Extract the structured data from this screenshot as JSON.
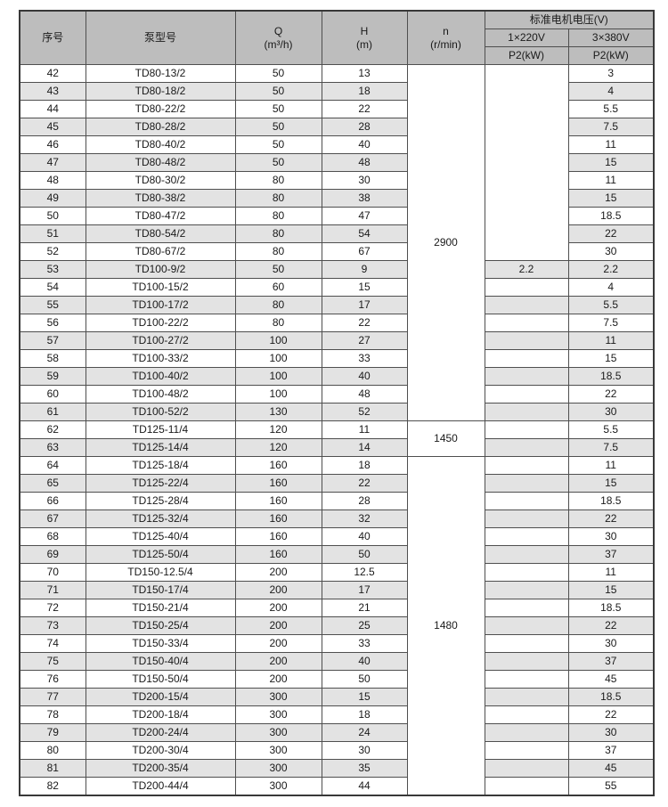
{
  "page": {
    "background": "#ffffff"
  },
  "colors": {
    "header_bg": "#bdbdbd",
    "stripe_bg": "#e3e3e3",
    "row_bg": "#ffffff",
    "border_inner": "#4f4f4f",
    "border_outer": "#383838",
    "text": "#1a1a1a"
  },
  "table": {
    "headers": {
      "no": "序号",
      "model": "泵型号",
      "q_line1": "Q",
      "q_line2": "(m³/h)",
      "h_line1": "H",
      "h_line2": "(m)",
      "n_line1": "n",
      "n_line2": "(r/min)",
      "voltage_group": "标准电机电压(V)",
      "v220": "1×220V",
      "v380": "3×380V",
      "p2_220": "P2(kW)",
      "p2_380": "P2(kW)"
    },
    "n_groups": [
      {
        "value": "2900",
        "start": 0,
        "span": 20
      },
      {
        "value": "1450",
        "start": 20,
        "span": 2
      },
      {
        "value": "1480",
        "start": 22,
        "span": 19
      }
    ],
    "p220_merge": {
      "start": 0,
      "span": 11
    },
    "rows": [
      {
        "no": "42",
        "model": "TD80-13/2",
        "q": "50",
        "h": "13",
        "p220": "",
        "p380": "3"
      },
      {
        "no": "43",
        "model": "TD80-18/2",
        "q": "50",
        "h": "18",
        "p220": "",
        "p380": "4"
      },
      {
        "no": "44",
        "model": "TD80-22/2",
        "q": "50",
        "h": "22",
        "p220": "",
        "p380": "5.5"
      },
      {
        "no": "45",
        "model": "TD80-28/2",
        "q": "50",
        "h": "28",
        "p220": "",
        "p380": "7.5"
      },
      {
        "no": "46",
        "model": "TD80-40/2",
        "q": "50",
        "h": "40",
        "p220": "",
        "p380": "11"
      },
      {
        "no": "47",
        "model": "TD80-48/2",
        "q": "50",
        "h": "48",
        "p220": "",
        "p380": "15"
      },
      {
        "no": "48",
        "model": "TD80-30/2",
        "q": "80",
        "h": "30",
        "p220": "",
        "p380": "11"
      },
      {
        "no": "49",
        "model": "TD80-38/2",
        "q": "80",
        "h": "38",
        "p220": "",
        "p380": "15"
      },
      {
        "no": "50",
        "model": "TD80-47/2",
        "q": "80",
        "h": "47",
        "p220": "",
        "p380": "18.5"
      },
      {
        "no": "51",
        "model": "TD80-54/2",
        "q": "80",
        "h": "54",
        "p220": "",
        "p380": "22"
      },
      {
        "no": "52",
        "model": "TD80-67/2",
        "q": "80",
        "h": "67",
        "p220": "",
        "p380": "30"
      },
      {
        "no": "53",
        "model": "TD100-9/2",
        "q": "50",
        "h": "9",
        "p220": "2.2",
        "p380": "2.2"
      },
      {
        "no": "54",
        "model": "TD100-15/2",
        "q": "60",
        "h": "15",
        "p220": "",
        "p380": "4"
      },
      {
        "no": "55",
        "model": "TD100-17/2",
        "q": "80",
        "h": "17",
        "p220": "",
        "p380": "5.5"
      },
      {
        "no": "56",
        "model": "TD100-22/2",
        "q": "80",
        "h": "22",
        "p220": "",
        "p380": "7.5"
      },
      {
        "no": "57",
        "model": "TD100-27/2",
        "q": "100",
        "h": "27",
        "p220": "",
        "p380": "11"
      },
      {
        "no": "58",
        "model": "TD100-33/2",
        "q": "100",
        "h": "33",
        "p220": "",
        "p380": "15"
      },
      {
        "no": "59",
        "model": "TD100-40/2",
        "q": "100",
        "h": "40",
        "p220": "",
        "p380": "18.5"
      },
      {
        "no": "60",
        "model": "TD100-48/2",
        "q": "100",
        "h": "48",
        "p220": "",
        "p380": "22"
      },
      {
        "no": "61",
        "model": "TD100-52/2",
        "q": "130",
        "h": "52",
        "p220": "",
        "p380": "30"
      },
      {
        "no": "62",
        "model": "TD125-11/4",
        "q": "120",
        "h": "11",
        "p220": "",
        "p380": "5.5"
      },
      {
        "no": "63",
        "model": "TD125-14/4",
        "q": "120",
        "h": "14",
        "p220": "",
        "p380": "7.5"
      },
      {
        "no": "64",
        "model": "TD125-18/4",
        "q": "160",
        "h": "18",
        "p220": "",
        "p380": "11"
      },
      {
        "no": "65",
        "model": "TD125-22/4",
        "q": "160",
        "h": "22",
        "p220": "",
        "p380": "15"
      },
      {
        "no": "66",
        "model": "TD125-28/4",
        "q": "160",
        "h": "28",
        "p220": "",
        "p380": "18.5"
      },
      {
        "no": "67",
        "model": "TD125-32/4",
        "q": "160",
        "h": "32",
        "p220": "",
        "p380": "22"
      },
      {
        "no": "68",
        "model": "TD125-40/4",
        "q": "160",
        "h": "40",
        "p220": "",
        "p380": "30"
      },
      {
        "no": "69",
        "model": "TD125-50/4",
        "q": "160",
        "h": "50",
        "p220": "",
        "p380": "37"
      },
      {
        "no": "70",
        "model": "TD150-12.5/4",
        "q": "200",
        "h": "12.5",
        "p220": "",
        "p380": "11"
      },
      {
        "no": "71",
        "model": "TD150-17/4",
        "q": "200",
        "h": "17",
        "p220": "",
        "p380": "15"
      },
      {
        "no": "72",
        "model": "TD150-21/4",
        "q": "200",
        "h": "21",
        "p220": "",
        "p380": "18.5"
      },
      {
        "no": "73",
        "model": "TD150-25/4",
        "q": "200",
        "h": "25",
        "p220": "",
        "p380": "22"
      },
      {
        "no": "74",
        "model": "TD150-33/4",
        "q": "200",
        "h": "33",
        "p220": "",
        "p380": "30"
      },
      {
        "no": "75",
        "model": "TD150-40/4",
        "q": "200",
        "h": "40",
        "p220": "",
        "p380": "37"
      },
      {
        "no": "76",
        "model": "TD150-50/4",
        "q": "200",
        "h": "50",
        "p220": "",
        "p380": "45"
      },
      {
        "no": "77",
        "model": "TD200-15/4",
        "q": "300",
        "h": "15",
        "p220": "",
        "p380": "18.5"
      },
      {
        "no": "78",
        "model": "TD200-18/4",
        "q": "300",
        "h": "18",
        "p220": "",
        "p380": "22"
      },
      {
        "no": "79",
        "model": "TD200-24/4",
        "q": "300",
        "h": "24",
        "p220": "",
        "p380": "30"
      },
      {
        "no": "80",
        "model": "TD200-30/4",
        "q": "300",
        "h": "30",
        "p220": "",
        "p380": "37"
      },
      {
        "no": "81",
        "model": "TD200-35/4",
        "q": "300",
        "h": "35",
        "p220": "",
        "p380": "45"
      },
      {
        "no": "82",
        "model": "TD200-44/4",
        "q": "300",
        "h": "44",
        "p220": "",
        "p380": "55"
      }
    ]
  }
}
